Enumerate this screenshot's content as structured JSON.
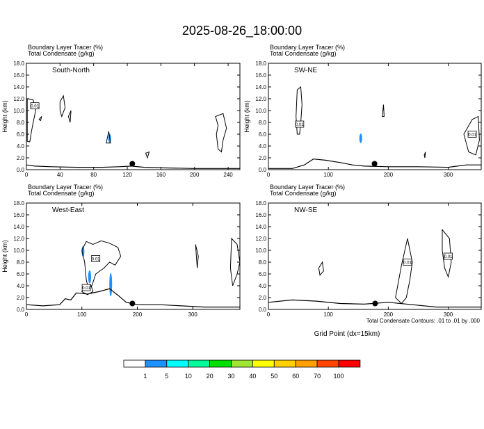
{
  "title": "2025-08-26_18:00:00",
  "footer": {
    "contour_note": "Total Condensate Contours: .01 to .01 by .000",
    "xlabel": "Grid Point (dx=15km)"
  },
  "colorbar": {
    "colors": [
      "#ffffff",
      "#1e90ff",
      "#00ffff",
      "#00fa9a",
      "#00e000",
      "#a0e632",
      "#ffff00",
      "#ffd000",
      "#ffa000",
      "#ff4500",
      "#ff0000"
    ],
    "labels": [
      "1",
      "5",
      "10",
      "20",
      "30",
      "40",
      "50",
      "60",
      "70",
      "100"
    ]
  },
  "chart_data": [
    {
      "type": "contour",
      "header1": "Boundary Layer Tracer    (%)",
      "header2": "Total Condensate    (g/kg)",
      "panel_label": "South-North",
      "ylabel": "Height (km)",
      "xlabel": "",
      "xlim": [
        0,
        254
      ],
      "ylim": [
        0,
        18
      ],
      "xticks": [
        0,
        40,
        80,
        120,
        160,
        200,
        240
      ],
      "yticks": [
        "0.0",
        "2.0",
        "4.0",
        "6.0",
        "8.0",
        "10.0",
        "12.0",
        "14.0",
        "16.0",
        "18.0"
      ],
      "contour_label": "0.01",
      "terrain": [
        [
          0,
          0.8
        ],
        [
          10,
          0.6
        ],
        [
          30,
          0.5
        ],
        [
          60,
          0.4
        ],
        [
          90,
          0.4
        ],
        [
          110,
          0.5
        ],
        [
          125,
          0.6
        ],
        [
          140,
          0.4
        ],
        [
          160,
          0.3
        ],
        [
          200,
          0.2
        ],
        [
          254,
          0.2
        ]
      ],
      "marker": [
        126,
        1.0
      ],
      "tracer_blobs": [
        [
          99,
          5.3,
          1.5,
          0.7
        ]
      ],
      "contours": [
        {
          "points": [
            [
              1,
              12
            ],
            [
              8,
              11.8
            ],
            [
              11,
              10
            ],
            [
              8,
              8
            ],
            [
              6,
              6.5
            ],
            [
              4,
              4.7
            ],
            [
              1,
              4.8
            ]
          ],
          "label_at": [
            10,
            10.8
          ]
        },
        {
          "points": [
            [
              15,
              8.5
            ],
            [
              18,
              9
            ],
            [
              17,
              8.3
            ]
          ]
        },
        {
          "points": [
            [
              40,
              11.5
            ],
            [
              44,
              12.5
            ],
            [
              46,
              10.5
            ],
            [
              42,
              9
            ],
            [
              40,
              10
            ]
          ]
        },
        {
          "points": [
            [
              50,
              9
            ],
            [
              53,
              10
            ],
            [
              52,
              8
            ]
          ]
        },
        {
          "points": [
            [
              95,
              4.5
            ],
            [
              98,
              6.5
            ],
            [
              100,
              4.5
            ]
          ]
        },
        {
          "points": [
            [
              142,
              2.8
            ],
            [
              146,
              3
            ],
            [
              144,
              2
            ]
          ]
        },
        {
          "points": [
            [
              225,
              9
            ],
            [
              234,
              9.5
            ],
            [
              238,
              7
            ],
            [
              234,
              5
            ],
            [
              232,
              3
            ],
            [
              228,
              3.5
            ],
            [
              226,
              6
            ],
            [
              228,
              7.5
            ]
          ]
        }
      ]
    },
    {
      "type": "contour",
      "header1": "Boundary Layer Tracer    (%)",
      "header2": "Total Condensate    (g/kg)",
      "panel_label": "SW-NE",
      "ylabel": "Height (km)",
      "xlabel": "",
      "xlim": [
        0,
        355
      ],
      "ylim": [
        0,
        18
      ],
      "xticks": [
        0,
        100,
        200,
        300
      ],
      "yticks": [
        "0.0",
        "2.0",
        "4.0",
        "6.0",
        "8.0",
        "10.0",
        "12.0",
        "14.0",
        "16.0",
        "18.0"
      ],
      "contour_label": "0.01",
      "terrain": [
        [
          0,
          0.2
        ],
        [
          40,
          0.2
        ],
        [
          60,
          0.8
        ],
        [
          75,
          1.8
        ],
        [
          95,
          1.6
        ],
        [
          120,
          1.2
        ],
        [
          140,
          0.8
        ],
        [
          160,
          0.6
        ],
        [
          200,
          0.5
        ],
        [
          250,
          0.5
        ],
        [
          300,
          0.4
        ],
        [
          330,
          0.8
        ],
        [
          355,
          0.8
        ]
      ],
      "marker": [
        177,
        1.0
      ],
      "tracer_blobs": [
        [
          154,
          5.3,
          1.6,
          0.8
        ]
      ],
      "contours": [
        {
          "points": [
            [
              48,
              13.5
            ],
            [
              54,
              14
            ],
            [
              56,
              11
            ],
            [
              54,
              8
            ],
            [
              52,
              6
            ],
            [
              48,
              6
            ],
            [
              46,
              9
            ]
          ],
          "label_at": [
            52,
            7.7
          ]
        },
        {
          "points": [
            [
              190,
              9
            ],
            [
              192,
              11
            ],
            [
              193,
              9
            ]
          ]
        },
        {
          "points": [
            [
              326,
              6
            ],
            [
              340,
              8.5
            ],
            [
              350,
              9
            ],
            [
              352,
              5
            ],
            [
              346,
              2.5
            ],
            [
              334,
              3
            ]
          ],
          "label_at": [
            340,
            6.0
          ]
        },
        {
          "points": [
            [
              260,
              2.5
            ],
            [
              262,
              3
            ],
            [
              261,
              2
            ]
          ]
        }
      ]
    },
    {
      "type": "contour",
      "header1": "Boundary Layer Tracer    (%)",
      "header2": "Total Condensate    (g/kg)",
      "panel_label": "West-East",
      "ylabel": "Height (km)",
      "xlabel": "",
      "xlim": [
        0,
        385
      ],
      "ylim": [
        0,
        18
      ],
      "xticks": [
        0,
        100,
        200,
        300
      ],
      "yticks": [
        "0.0",
        "2.0",
        "4.0",
        "6.0",
        "8.0",
        "10.0",
        "12.0",
        "14.0",
        "16.0",
        "18.0"
      ],
      "contour_label": "0.01",
      "terrain": [
        [
          0,
          0.8
        ],
        [
          30,
          0.6
        ],
        [
          60,
          0.8
        ],
        [
          70,
          1.8
        ],
        [
          80,
          1.6
        ],
        [
          90,
          2.8
        ],
        [
          110,
          2.6
        ],
        [
          130,
          3.0
        ],
        [
          150,
          3.5
        ],
        [
          165,
          2.4
        ],
        [
          180,
          1.2
        ],
        [
          200,
          0.8
        ],
        [
          240,
          0.8
        ],
        [
          280,
          0.6
        ],
        [
          320,
          0.4
        ],
        [
          385,
          0.4
        ]
      ],
      "marker": [
        191,
        1.0
      ],
      "tracer_blobs": [
        [
          102,
          9.8,
          1.8,
          1.0
        ],
        [
          114,
          5.5,
          2.2,
          1.2
        ],
        [
          152,
          4.2,
          4.0,
          0.7
        ]
      ],
      "contours": [
        {
          "points": [
            [
              100,
              10
            ],
            [
              108,
              11.5
            ],
            [
              120,
              11
            ],
            [
              135,
              11.6
            ],
            [
              150,
              11.2
            ],
            [
              165,
              10.5
            ],
            [
              170,
              9
            ],
            [
              160,
              7.5
            ],
            [
              150,
              8
            ],
            [
              140,
              7
            ],
            [
              125,
              6
            ],
            [
              118,
              4
            ],
            [
              112,
              3.5
            ],
            [
              108,
              5
            ],
            [
              105,
              8
            ]
          ],
          "label_at": [
            125,
            8.6
          ]
        },
        {
          "points": [
            [
              100,
              3
            ],
            [
              108,
              4
            ],
            [
              116,
              4.2
            ],
            [
              120,
              3
            ],
            [
              110,
              2.5
            ]
          ],
          "label_at": [
            108,
            3.7
          ]
        },
        {
          "points": [
            [
              305,
              11
            ],
            [
              310,
              9
            ],
            [
              308,
              7
            ]
          ]
        },
        {
          "points": [
            [
              370,
              12
            ],
            [
              380,
              11
            ],
            [
              385,
              8
            ],
            [
              380,
              6
            ],
            [
              372,
              4
            ],
            [
              368,
              7
            ]
          ]
        }
      ]
    },
    {
      "type": "contour",
      "header1": "Boundary Layer Tracer    (%)",
      "header2": "Total Condensate    (g/kg)",
      "panel_label": "NW-SE",
      "ylabel": "",
      "xlabel": "Grid Point (dx=15km)",
      "xlim": [
        0,
        355
      ],
      "ylim": [
        0,
        18
      ],
      "xticks": [
        0,
        100,
        200,
        300
      ],
      "yticks": [
        "0.0",
        "2.0",
        "4.0",
        "6.0",
        "8.0",
        "10.0",
        "12.0",
        "14.0",
        "16.0",
        "18.0"
      ],
      "contour_label": "0.01",
      "terrain": [
        [
          0,
          1.2
        ],
        [
          40,
          1.6
        ],
        [
          80,
          1.4
        ],
        [
          120,
          1.0
        ],
        [
          160,
          0.9
        ],
        [
          200,
          1.2
        ],
        [
          240,
          0.8
        ],
        [
          280,
          0.4
        ],
        [
          355,
          0.4
        ]
      ],
      "marker": [
        178,
        1.0
      ],
      "tracer_blobs": [],
      "contours": [
        {
          "points": [
            [
              84,
              7
            ],
            [
              90,
              8
            ],
            [
              92,
              6.5
            ],
            [
              86,
              5.8
            ]
          ]
        },
        {
          "points": [
            [
              212,
              2
            ],
            [
              222,
              7.5
            ],
            [
              232,
              12
            ],
            [
              240,
              8
            ],
            [
              236,
              5
            ],
            [
              230,
              2
            ],
            [
              222,
              1
            ]
          ],
          "label_at": [
            232,
            8.0
          ]
        },
        {
          "points": [
            [
              290,
              13.5
            ],
            [
              302,
              12
            ],
            [
              305,
              8
            ],
            [
              300,
              5.5
            ],
            [
              294,
              7
            ],
            [
              290,
              10
            ]
          ],
          "label_at": [
            300,
            9.0
          ]
        }
      ]
    }
  ]
}
